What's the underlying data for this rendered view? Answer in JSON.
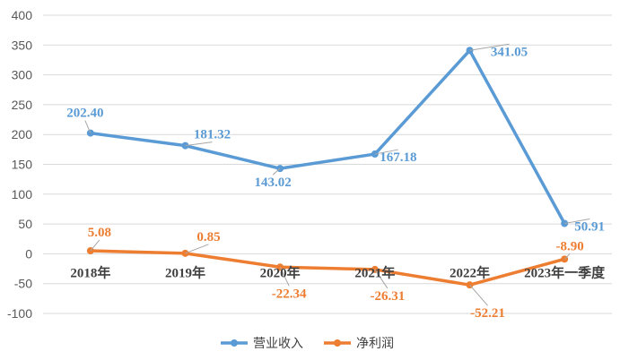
{
  "chart_data": {
    "type": "line",
    "categories": [
      "2018年",
      "2019年",
      "2020年",
      "2021年",
      "2022年",
      "2023年一季度"
    ],
    "ylim": [
      -100,
      400
    ],
    "yticks": [
      -100,
      -50,
      0,
      50,
      100,
      150,
      200,
      250,
      300,
      350,
      400
    ],
    "grid": true,
    "legend_position": "bottom",
    "series": [
      {
        "name": "营业收入",
        "color": "#5B9BD5",
        "values": [
          202.4,
          181.32,
          143.02,
          167.18,
          341.05,
          50.91
        ],
        "labels": [
          "202.40",
          "181.32",
          "143.02",
          "167.18",
          "341.05",
          "50.91"
        ]
      },
      {
        "name": "净利润",
        "color": "#ED7D31",
        "values": [
          5.08,
          0.85,
          -22.34,
          -26.31,
          -52.21,
          -8.9
        ],
        "labels": [
          "5.08",
          "0.85",
          "-22.34",
          "-26.31",
          "-52.21",
          "-8.90"
        ]
      }
    ]
  }
}
